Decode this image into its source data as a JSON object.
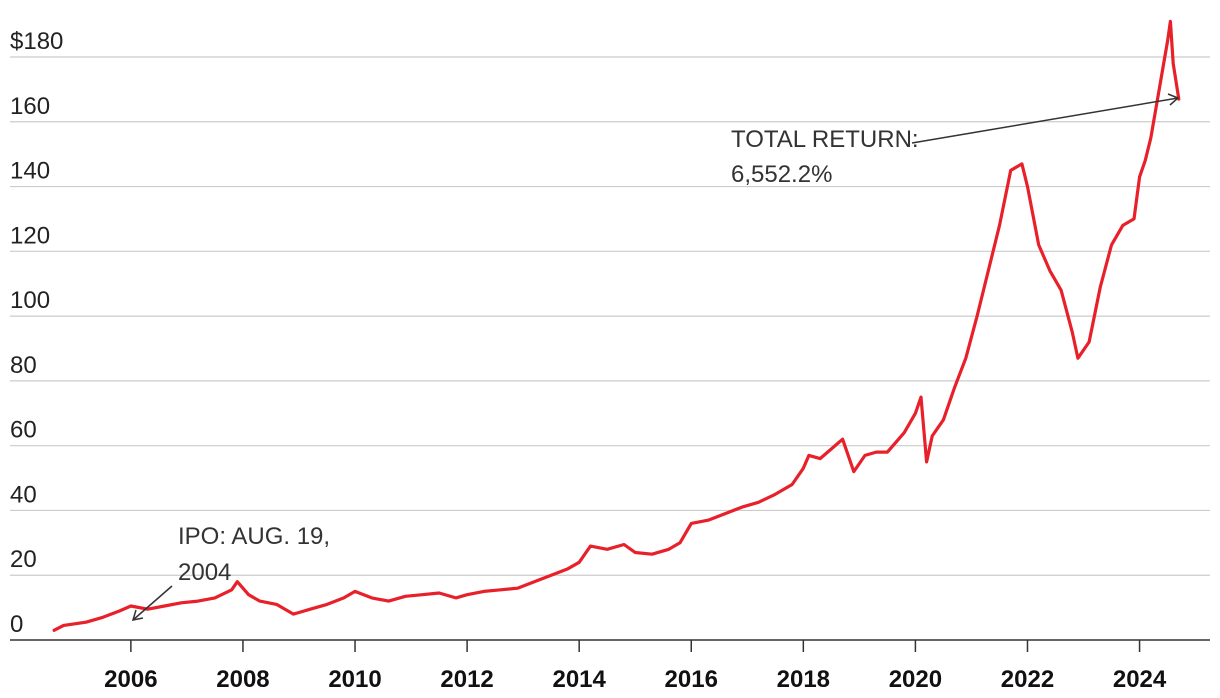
{
  "chart_data": {
    "type": "line",
    "title": "",
    "xlabel": "",
    "ylabel": "",
    "xlim": [
      2004.2,
      2024.9
    ],
    "ylim": [
      0,
      180
    ],
    "y_ticks": [
      0,
      20,
      40,
      60,
      80,
      100,
      120,
      140,
      160,
      180
    ],
    "y_tick_labels": [
      "0",
      "20",
      "40",
      "60",
      "80",
      "100",
      "120",
      "140",
      "160",
      "$180"
    ],
    "x_ticks": [
      2006,
      2008,
      2010,
      2012,
      2014,
      2016,
      2018,
      2020,
      2022,
      2024
    ],
    "x_tick_labels": [
      "2006",
      "2008",
      "2010",
      "2012",
      "2014",
      "2016",
      "2018",
      "2020",
      "2022",
      "2024"
    ],
    "grid": "horizontal",
    "legend": "none",
    "series_color": "#e8202a",
    "series": [
      {
        "x": [
          2004.63,
          2004.8,
          2005.0,
          2005.2,
          2005.5,
          2005.8,
          2006.0,
          2006.3,
          2006.6,
          2006.9,
          2007.2,
          2007.5,
          2007.8,
          2007.9,
          2008.1,
          2008.3,
          2008.6,
          2008.9,
          2009.0,
          2009.2,
          2009.5,
          2009.8,
          2010.0,
          2010.3,
          2010.6,
          2010.9,
          2011.2,
          2011.5,
          2011.8,
          2012.0,
          2012.3,
          2012.6,
          2012.9,
          2013.2,
          2013.5,
          2013.8,
          2014.0,
          2014.2,
          2014.5,
          2014.8,
          2015.0,
          2015.3,
          2015.6,
          2015.8,
          2016.0,
          2016.3,
          2016.6,
          2016.9,
          2017.2,
          2017.5,
          2017.8,
          2018.0,
          2018.1,
          2018.3,
          2018.5,
          2018.7,
          2018.9,
          2019.1,
          2019.3,
          2019.5,
          2019.8,
          2020.0,
          2020.1,
          2020.2,
          2020.3,
          2020.5,
          2020.7,
          2020.9,
          2021.1,
          2021.3,
          2021.5,
          2021.7,
          2021.9,
          2022.0,
          2022.2,
          2022.4,
          2022.6,
          2022.8,
          2022.9,
          2023.1,
          2023.3,
          2023.5,
          2023.7,
          2023.9,
          2024.0,
          2024.1,
          2024.2,
          2024.3,
          2024.4,
          2024.5,
          2024.55,
          2024.6,
          2024.7
        ],
        "values": [
          3,
          4.5,
          5,
          5.5,
          7,
          9,
          10.5,
          9.5,
          10.5,
          11.5,
          12,
          13,
          15.5,
          18,
          14,
          12,
          11,
          8,
          8.5,
          9.5,
          11,
          13,
          15,
          13,
          12,
          13.5,
          14,
          14.5,
          13,
          14,
          15,
          15.5,
          16,
          18,
          20,
          22,
          24,
          29,
          28,
          29.5,
          27,
          26.5,
          28,
          30,
          36,
          37,
          39,
          41,
          42.5,
          45,
          48,
          53,
          57,
          56,
          59,
          62,
          52,
          57,
          58,
          58,
          64,
          70,
          75,
          55,
          63,
          68,
          78,
          87,
          100,
          114,
          128,
          145,
          147,
          140,
          122,
          114,
          108,
          95,
          87,
          92,
          109,
          122,
          128,
          130,
          143,
          148,
          155,
          165,
          175,
          185,
          191,
          178,
          167
        ]
      }
    ],
    "annotations": [
      {
        "text_lines": [
          "IPO: AUG. 19,",
          "2004"
        ],
        "x": 2004.63,
        "y": 3
      },
      {
        "text_lines": [
          "TOTAL RETURN:",
          "6,552.2%"
        ],
        "x": 2024.7,
        "y": 167
      }
    ]
  }
}
